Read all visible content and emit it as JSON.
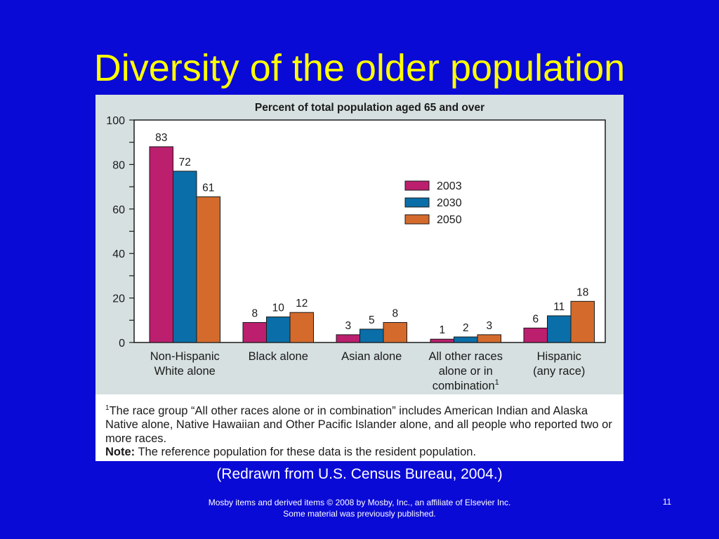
{
  "slide": {
    "title": "Diversity of the older population",
    "source": "(Redrawn from U.S. Census Bureau, 2004.)",
    "credit_line1": "Mosby items and derived items © 2008 by Mosby, Inc., an affiliate of Elsevier Inc.",
    "credit_line2": "Some material was previously published.",
    "page_number": "11"
  },
  "footnote": {
    "marker": "1",
    "text": "The race group “All other races alone or in combination” includes American Indian and Alaska Native alone, Native Hawaiian and Other Pacific Islander alone, and all people who reported two or more races.",
    "note_label": "Note:",
    "note_text": " The reference population for these data is the resident population."
  },
  "chart_data": {
    "type": "bar",
    "title": "Percent of total population aged 65 and over",
    "xlabel": "",
    "ylabel": "",
    "ylim": [
      0,
      100
    ],
    "yticks": [
      "0",
      "20",
      "40",
      "60",
      "80",
      "100"
    ],
    "categories": [
      [
        "Non-Hispanic",
        "White alone"
      ],
      [
        "Black alone"
      ],
      [
        "Asian alone"
      ],
      [
        "All other races",
        "alone or in",
        "combination"
      ],
      [
        "Hispanic",
        "(any race)"
      ]
    ],
    "category_superscripts": [
      "",
      "",
      "",
      "1",
      ""
    ],
    "series": [
      {
        "name": "2003",
        "color": "#bb1f6e",
        "values": [
          83,
          8,
          3,
          1,
          6
        ],
        "heights": [
          88,
          9,
          3.5,
          1.5,
          6.5
        ]
      },
      {
        "name": "2030",
        "color": "#0a6ea8",
        "values": [
          72,
          10,
          5,
          2,
          11
        ],
        "heights": [
          77,
          11.5,
          6,
          2.5,
          12
        ]
      },
      {
        "name": "2050",
        "color": "#d46b2c",
        "values": [
          61,
          12,
          8,
          3,
          18
        ],
        "heights": [
          65.5,
          13.5,
          9,
          3.5,
          18.5
        ]
      }
    ],
    "grid": false,
    "legend_position": "upper-right inside"
  }
}
